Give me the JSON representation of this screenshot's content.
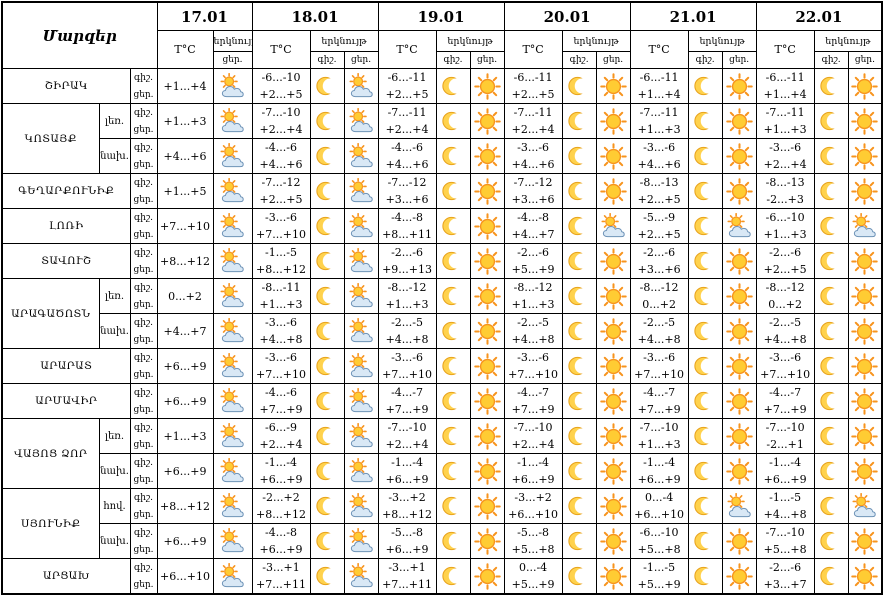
{
  "table": {
    "corner_label": "Մարզեր",
    "temp_header": "T°C",
    "sky_header": "երկնույթ",
    "night_label": "գիշ.",
    "day_label": "ցեր.",
    "dates": [
      "17.01",
      "18.01",
      "19.01",
      "20.01",
      "21.01",
      "22.01"
    ],
    "icon_legend": {
      "moon": "crescent-moon",
      "sun": "sun",
      "pc": "sun-behind-cloud"
    },
    "colors": {
      "sun_ray": "#F7941E",
      "sun_fill": "#FFCC33",
      "moon_fill": "#FFD24D",
      "moon_stroke": "#E8A31C",
      "cloud_fill": "#D9E8F5",
      "cloud_stroke": "#6E93B7",
      "border": "#000000",
      "background": "#FFFFFF"
    },
    "regions": [
      {
        "name": "ՇԻՐԱԿ",
        "rows": [
          {
            "sub": null,
            "cells": [
              {
                "d": "+1...+4",
                "di": "pc"
              },
              {
                "n": "-6...-10",
                "d": "+2...+5",
                "ni": "moon",
                "di": "pc"
              },
              {
                "n": "-6...-11",
                "d": "+2...+5",
                "ni": "moon",
                "di": "sun"
              },
              {
                "n": "-6...-11",
                "d": "+2...+5",
                "ni": "moon",
                "di": "sun"
              },
              {
                "n": "-6...-11",
                "d": "+1...+4",
                "ni": "moon",
                "di": "sun"
              },
              {
                "n": "-6...-11",
                "d": "+1...+4",
                "ni": "moon",
                "di": "sun"
              }
            ]
          }
        ]
      },
      {
        "name": "ԿՈՏԱՅՔ",
        "rows": [
          {
            "sub": "լեռ.",
            "cells": [
              {
                "d": "+1...+3",
                "di": "pc"
              },
              {
                "n": "-7...-10",
                "d": "+2...+4",
                "ni": "moon",
                "di": "pc"
              },
              {
                "n": "-7...-11",
                "d": "+2...+4",
                "ni": "moon",
                "di": "sun"
              },
              {
                "n": "-7...-11",
                "d": "+2...+4",
                "ni": "moon",
                "di": "sun"
              },
              {
                "n": "-7...-11",
                "d": "+1...+3",
                "ni": "moon",
                "di": "sun"
              },
              {
                "n": "-7...-11",
                "d": "+1...+3",
                "ni": "moon",
                "di": "sun"
              }
            ]
          },
          {
            "sub": "նախ.",
            "cells": [
              {
                "d": "+4...+6",
                "di": "pc"
              },
              {
                "n": "-4...-6",
                "d": "+4...+6",
                "ni": "moon",
                "di": "pc"
              },
              {
                "n": "-4...-6",
                "d": "+4...+6",
                "ni": "moon",
                "di": "sun"
              },
              {
                "n": "-3...-6",
                "d": "+4...+6",
                "ni": "moon",
                "di": "sun"
              },
              {
                "n": "-3...-6",
                "d": "+4...+6",
                "ni": "moon",
                "di": "sun"
              },
              {
                "n": "-3...-6",
                "d": "+2...+4",
                "ni": "moon",
                "di": "sun"
              }
            ]
          }
        ]
      },
      {
        "name": "ԳԵՂԱՐՔՈՒՆԻՔ",
        "rows": [
          {
            "sub": null,
            "cells": [
              {
                "d": "+1...+5",
                "di": "pc"
              },
              {
                "n": "-7...-12",
                "d": "+2...+5",
                "ni": "moon",
                "di": "pc"
              },
              {
                "n": "-7...-12",
                "d": "+3...+6",
                "ni": "moon",
                "di": "sun"
              },
              {
                "n": "-7...-12",
                "d": "+3...+6",
                "ni": "moon",
                "di": "sun"
              },
              {
                "n": "-8...-13",
                "d": "+2...+5",
                "ni": "moon",
                "di": "sun"
              },
              {
                "n": "-8...-13",
                "d": "-2...+3",
                "ni": "moon",
                "di": "sun"
              }
            ]
          }
        ]
      },
      {
        "name": "ԼՈՌԻ",
        "rows": [
          {
            "sub": null,
            "cells": [
              {
                "d": "+7...+10",
                "di": "pc"
              },
              {
                "n": "-3...-6",
                "d": "+7...+10",
                "ni": "moon",
                "di": "pc"
              },
              {
                "n": "-4...-8",
                "d": "+8...+11",
                "ni": "moon",
                "di": "sun"
              },
              {
                "n": "-4...-8",
                "d": "+4...+7",
                "ni": "moon",
                "di": "pc"
              },
              {
                "n": "-5...-9",
                "d": "+2...+5",
                "ni": "moon",
                "di": "pc"
              },
              {
                "n": "-6...-10",
                "d": "+1...+3",
                "ni": "moon",
                "di": "pc"
              }
            ]
          }
        ]
      },
      {
        "name": "ՏԱՎՈՒՇ",
        "rows": [
          {
            "sub": null,
            "cells": [
              {
                "d": "+8...+12",
                "di": "pc"
              },
              {
                "n": "-1...-5",
                "d": "+8...+12",
                "ni": "moon",
                "di": "pc"
              },
              {
                "n": "-2...-6",
                "d": "+9...+13",
                "ni": "moon",
                "di": "sun"
              },
              {
                "n": "-2...-6",
                "d": "+5...+9",
                "ni": "moon",
                "di": "sun"
              },
              {
                "n": "-2...-6",
                "d": "+3...+6",
                "ni": "moon",
                "di": "sun"
              },
              {
                "n": "-2...-6",
                "d": "+2...+5",
                "ni": "moon",
                "di": "sun"
              }
            ]
          }
        ]
      },
      {
        "name": "ԱՐԱԳԱԾՈՏՆ",
        "rows": [
          {
            "sub": "լեռ.",
            "cells": [
              {
                "d": "0...+2",
                "di": "pc"
              },
              {
                "n": "-8...-11",
                "d": "+1...+3",
                "ni": "moon",
                "di": "pc"
              },
              {
                "n": "-8...-12",
                "d": "+1...+3",
                "ni": "moon",
                "di": "sun"
              },
              {
                "n": "-8...-12",
                "d": "+1...+3",
                "ni": "moon",
                "di": "sun"
              },
              {
                "n": "-8...-12",
                "d": "0...+2",
                "ni": "moon",
                "di": "sun"
              },
              {
                "n": "-8...-12",
                "d": "0...+2",
                "ni": "moon",
                "di": "sun"
              }
            ]
          },
          {
            "sub": "նախ.",
            "cells": [
              {
                "d": "+4...+7",
                "di": "pc"
              },
              {
                "n": "-3...-6",
                "d": "+4...+8",
                "ni": "moon",
                "di": "pc"
              },
              {
                "n": "-2...-5",
                "d": "+4...+8",
                "ni": "moon",
                "di": "sun"
              },
              {
                "n": "-2...-5",
                "d": "+4...+8",
                "ni": "moon",
                "di": "sun"
              },
              {
                "n": "-2...-5",
                "d": "+4...+8",
                "ni": "moon",
                "di": "sun"
              },
              {
                "n": "-2...-5",
                "d": "+4...+8",
                "ni": "moon",
                "di": "sun"
              }
            ]
          }
        ]
      },
      {
        "name": "ԱՐԱՐԱՏ",
        "rows": [
          {
            "sub": null,
            "cells": [
              {
                "d": "+6...+9",
                "di": "pc"
              },
              {
                "n": "-3...-6",
                "d": "+7...+10",
                "ni": "moon",
                "di": "pc"
              },
              {
                "n": "-3...-6",
                "d": "+7...+10",
                "ni": "moon",
                "di": "sun"
              },
              {
                "n": "-3...-6",
                "d": "+7...+10",
                "ni": "moon",
                "di": "sun"
              },
              {
                "n": "-3...-6",
                "d": "+7...+10",
                "ni": "moon",
                "di": "sun"
              },
              {
                "n": "-3...-6",
                "d": "+7...+10",
                "ni": "moon",
                "di": "sun"
              }
            ]
          }
        ]
      },
      {
        "name": "ԱՐՄԱՎԻՐ",
        "rows": [
          {
            "sub": null,
            "cells": [
              {
                "d": "+6...+9",
                "di": "pc"
              },
              {
                "n": "-4...-6",
                "d": "+7...+9",
                "ni": "moon",
                "di": "pc"
              },
              {
                "n": "-4...-7",
                "d": "+7...+9",
                "ni": "moon",
                "di": "sun"
              },
              {
                "n": "-4...-7",
                "d": "+7...+9",
                "ni": "moon",
                "di": "sun"
              },
              {
                "n": "-4...-7",
                "d": "+7...+9",
                "ni": "moon",
                "di": "sun"
              },
              {
                "n": "-4...-7",
                "d": "+7...+9",
                "ni": "moon",
                "di": "sun"
              }
            ]
          }
        ]
      },
      {
        "name": "ՎԱՅՈՑ ՁՈՐ",
        "rows": [
          {
            "sub": "լեռ.",
            "cells": [
              {
                "d": "+1...+3",
                "di": "pc"
              },
              {
                "n": "-6...-9",
                "d": "+2...+4",
                "ni": "moon",
                "di": "pc"
              },
              {
                "n": "-7...-10",
                "d": "+2...+4",
                "ni": "moon",
                "di": "sun"
              },
              {
                "n": "-7...-10",
                "d": "+2...+4",
                "ni": "moon",
                "di": "sun"
              },
              {
                "n": "-7...-10",
                "d": "+1...+3",
                "ni": "moon",
                "di": "sun"
              },
              {
                "n": "-7...-10",
                "d": "-2...+1",
                "ni": "moon",
                "di": "sun"
              }
            ]
          },
          {
            "sub": "նախ.",
            "cells": [
              {
                "d": "+6...+9",
                "di": "pc"
              },
              {
                "n": "-1...-4",
                "d": "+6...+9",
                "ni": "moon",
                "di": "pc"
              },
              {
                "n": "-1...-4",
                "d": "+6...+9",
                "ni": "moon",
                "di": "sun"
              },
              {
                "n": "-1...-4",
                "d": "+6...+9",
                "ni": "moon",
                "di": "sun"
              },
              {
                "n": "-1...-4",
                "d": "+6...+9",
                "ni": "moon",
                "di": "sun"
              },
              {
                "n": "-1...-4",
                "d": "+6...+9",
                "ni": "moon",
                "di": "sun"
              }
            ]
          }
        ]
      },
      {
        "name": "ՍՅՈՒՆԻՔ",
        "rows": [
          {
            "sub": "հով.",
            "cells": [
              {
                "d": "+8...+12",
                "di": "pc"
              },
              {
                "n": "-2...+2",
                "d": "+8...+12",
                "ni": "moon",
                "di": "pc"
              },
              {
                "n": "-3...+2",
                "d": "+8...+12",
                "ni": "moon",
                "di": "sun"
              },
              {
                "n": "-3...+2",
                "d": "+6...+10",
                "ni": "moon",
                "di": "sun"
              },
              {
                "n": "0...-4",
                "d": "+6...+10",
                "ni": "moon",
                "di": "pc"
              },
              {
                "n": "-1...-5",
                "d": "+4...+8",
                "ni": "moon",
                "di": "pc"
              }
            ]
          },
          {
            "sub": "նախ.",
            "cells": [
              {
                "d": "+6...+9",
                "di": "pc"
              },
              {
                "n": "-4...-8",
                "d": "+6...+9",
                "ni": "moon",
                "di": "pc"
              },
              {
                "n": "-5...-8",
                "d": "+6...+9",
                "ni": "moon",
                "di": "sun"
              },
              {
                "n": "-5...-8",
                "d": "+5...+8",
                "ni": "moon",
                "di": "sun"
              },
              {
                "n": "-6...-10",
                "d": "+5...+8",
                "ni": "moon",
                "di": "sun"
              },
              {
                "n": "-7...-10",
                "d": "+5...+8",
                "ni": "moon",
                "di": "sun"
              }
            ]
          }
        ]
      },
      {
        "name": "ԱՐՑԱԽ",
        "rows": [
          {
            "sub": null,
            "cells": [
              {
                "d": "+6...+10",
                "di": "pc"
              },
              {
                "n": "-3...+1",
                "d": "+7...+11",
                "ni": "moon",
                "di": "pc"
              },
              {
                "n": "-3...+1",
                "d": "+7...+11",
                "ni": "moon",
                "di": "sun"
              },
              {
                "n": "0...-4",
                "d": "+5...+9",
                "ni": "moon",
                "di": "sun"
              },
              {
                "n": "-1...-5",
                "d": "+5...+9",
                "ni": "moon",
                "di": "sun"
              },
              {
                "n": "-2...-6",
                "d": "+3...+7",
                "ni": "moon",
                "di": "sun"
              }
            ]
          }
        ]
      }
    ]
  }
}
